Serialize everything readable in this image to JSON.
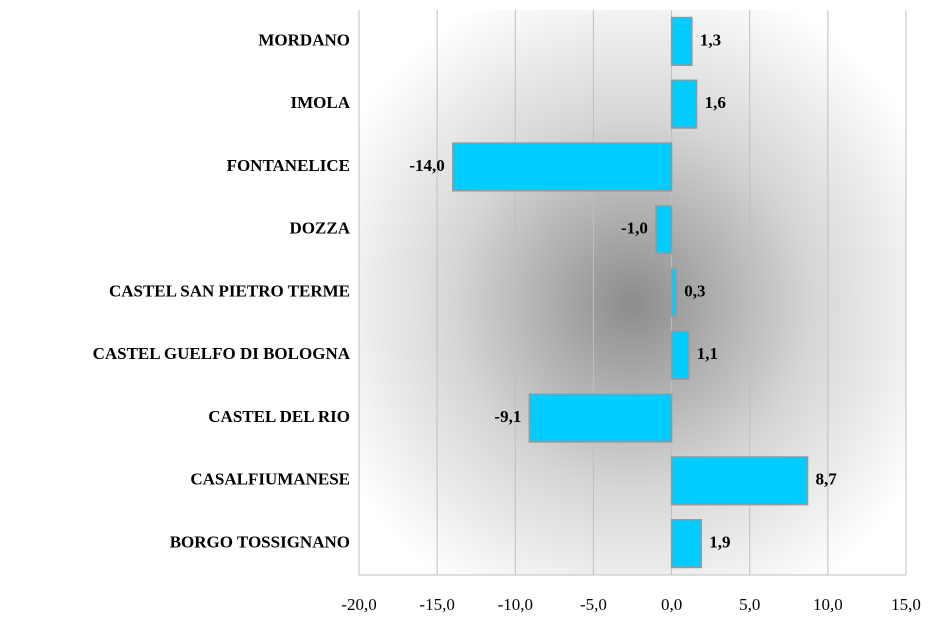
{
  "chart_data": {
    "type": "barh",
    "categories": [
      "MORDANO",
      "IMOLA",
      "FONTANELICE",
      "DOZZA",
      "CASTEL SAN PIETRO TERME",
      "CASTEL GUELFO DI BOLOGNA",
      "CASTEL DEL RIO",
      "CASALFIUMANESE",
      "BORGO TOSSIGNANO"
    ],
    "values": [
      1.3,
      1.6,
      -14.0,
      -1.0,
      0.3,
      1.1,
      -9.1,
      8.7,
      1.9
    ],
    "value_labels": [
      "1,3",
      "1,6",
      "-14,0",
      "-1,0",
      "0,3",
      "1,1",
      "-9,1",
      "8,7",
      "1,9"
    ],
    "color": "#00ccff",
    "xlim": [
      -20,
      15
    ],
    "xticks": [
      {
        "value": -20,
        "label": "-20,0"
      },
      {
        "value": -15,
        "label": "-15,0"
      },
      {
        "value": -10,
        "label": "-10,0"
      },
      {
        "value": -5,
        "label": "-5,0"
      },
      {
        "value": 0,
        "label": "0,0"
      },
      {
        "value": 5,
        "label": "5,0"
      },
      {
        "value": 10,
        "label": "10,0"
      },
      {
        "value": 15,
        "label": "15,0"
      }
    ],
    "grid": true
  }
}
